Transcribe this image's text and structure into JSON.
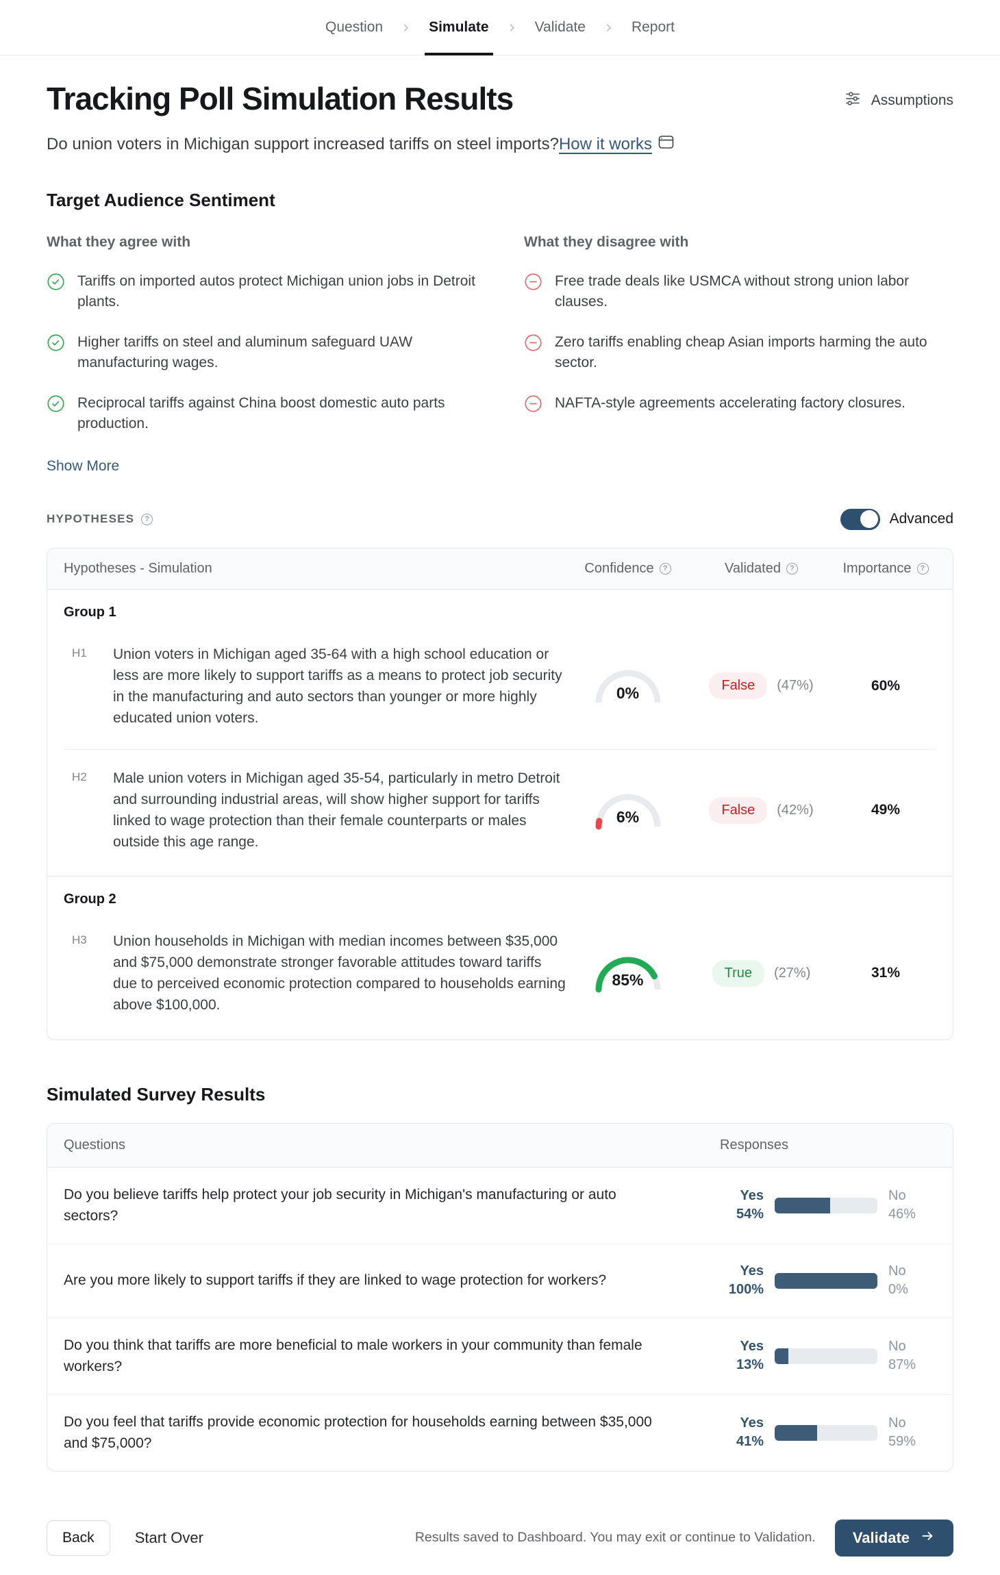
{
  "breadcrumb": {
    "items": [
      {
        "label": "Question",
        "active": false
      },
      {
        "label": "Simulate",
        "active": true
      },
      {
        "label": "Validate",
        "active": false
      },
      {
        "label": "Report",
        "active": false
      }
    ]
  },
  "header": {
    "title": "Tracking Poll Simulation Results",
    "assumptions_label": "Assumptions",
    "subtitle": "Do union voters in Michigan support increased tariffs on steel imports?",
    "how_it_works_label": "How it works"
  },
  "sentiment": {
    "heading": "Target Audience Sentiment",
    "agree": {
      "heading": "What they agree with",
      "items": [
        "Tariffs on imported autos protect Michigan union jobs in Detroit plants.",
        "Higher tariffs on steel and aluminum safeguard UAW manufacturing wages.",
        "Reciprocal tariffs against China boost domestic auto parts production."
      ]
    },
    "disagree": {
      "heading": "What they disagree with",
      "items": [
        "Free trade deals like USMCA without strong union labor clauses.",
        "Zero tariffs enabling cheap Asian imports harming the auto sector.",
        "NAFTA-style agreements accelerating factory closures."
      ]
    },
    "show_more_label": "Show More"
  },
  "hypotheses": {
    "section_label": "HYPOTHESES",
    "advanced_label": "Advanced",
    "advanced_on": true,
    "columns": {
      "hypotheses": "Hypotheses - Simulation",
      "confidence": "Confidence",
      "validated": "Validated",
      "importance": "Importance"
    },
    "groups": [
      {
        "label": "Group 1",
        "rows": [
          {
            "id": "H1",
            "text": "Union voters in Michigan aged 35-64 with a high school education or less are more likely to support tariffs as a means to protect job security in the manufacturing and auto sectors than younger or more highly educated union voters.",
            "confidence": "0%",
            "confidence_color": "#e5484d",
            "validated": "False",
            "validated_note": "(47%)",
            "importance": "60%"
          },
          {
            "id": "H2",
            "text": "Male union voters in Michigan aged 35-54, particularly in metro Detroit and surrounding industrial areas, will show higher support for tariffs linked to wage protection than their female counterparts or males outside this age range.",
            "confidence": "6%",
            "confidence_color": "#e5484d",
            "validated": "False",
            "validated_note": "(42%)",
            "importance": "49%"
          }
        ]
      },
      {
        "label": "Group 2",
        "rows": [
          {
            "id": "H3",
            "text": "Union households in Michigan with median incomes between $35,000 and $75,000 demonstrate stronger favorable attitudes toward tariffs due to perceived economic protection compared to households earning above $100,000.",
            "confidence": "85%",
            "confidence_color": "#22ab55",
            "validated": "True",
            "validated_note": "(27%)",
            "importance": "31%"
          }
        ]
      }
    ]
  },
  "survey": {
    "heading": "Simulated Survey Results",
    "columns": {
      "questions": "Questions",
      "responses": "Responses"
    },
    "yes_label": "Yes",
    "no_label": "No",
    "rows": [
      {
        "question": "Do you believe tariffs help protect your job security in Michigan's manufacturing or auto sectors?",
        "yes": "54%",
        "no": "46%"
      },
      {
        "question": "Are you more likely to support tariffs if they are linked to wage protection for workers?",
        "yes": "100%",
        "no": "0%"
      },
      {
        "question": "Do you think that tariffs are more beneficial to male workers in your community than female workers?",
        "yes": "13%",
        "no": "87%"
      },
      {
        "question": "Do you feel that tariffs provide economic protection for households earning between $35,000 and $75,000?",
        "yes": "41%",
        "no": "59%"
      }
    ]
  },
  "footer": {
    "back_label": "Back",
    "start_over_label": "Start Over",
    "status_text": "Results saved to Dashboard. You may exit or continue to Validation.",
    "validate_label": "Validate"
  },
  "colors": {
    "accent": "#2f4f6e",
    "bar_fill": "#3c5c78",
    "gauge_track": "#e8eaed",
    "gauge_red": "#e5484d",
    "gauge_green": "#22ab55",
    "badge_false_text": "#c5221f",
    "badge_true_text": "#1e8e3e",
    "link": "#35587c"
  }
}
